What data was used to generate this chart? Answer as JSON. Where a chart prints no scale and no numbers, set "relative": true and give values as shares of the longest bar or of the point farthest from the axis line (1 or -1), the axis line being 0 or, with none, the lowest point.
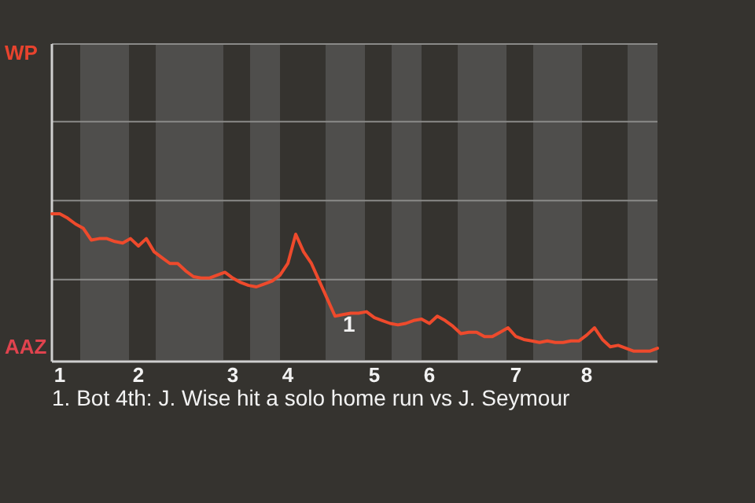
{
  "chart_data": {
    "type": "line",
    "relative": true,
    "ref_lines": [
      {
        "axis": "y",
        "value": 0.55,
        "color": "#8a8a88"
      },
      {
        "axis": "y",
        "value": 1.09,
        "color": "#8a8a88"
      },
      {
        "axis": "y",
        "value": 1.63,
        "color": "#8a8a88"
      }
    ],
    "categories": [
      null,
      "1",
      null,
      null,
      null,
      null,
      null,
      null,
      null,
      null,
      null,
      "2",
      null,
      null,
      null,
      null,
      null,
      null,
      null,
      null,
      null,
      null,
      null,
      "3",
      null,
      null,
      null,
      null,
      null,
      null,
      "4",
      null,
      null,
      null,
      null,
      null,
      null,
      null,
      null,
      null,
      null,
      "5",
      null,
      null,
      null,
      null,
      null,
      null,
      "6",
      null,
      null,
      null,
      null,
      null,
      null,
      null,
      null,
      null,
      null,
      "7",
      null,
      null,
      null,
      null,
      null,
      null,
      null,
      null,
      "8",
      null,
      null,
      null,
      null,
      null,
      null,
      null,
      null,
      null
    ],
    "series": [
      {
        "color": "#ee4a2c",
        "values": [
          1,
          1,
          0.97,
          0.93,
          0.9,
          0.82,
          0.83,
          0.83,
          0.81,
          0.8,
          0.83,
          0.78,
          0.83,
          0.74,
          0.7,
          0.66,
          0.66,
          0.61,
          0.57,
          0.56,
          0.56,
          0.58,
          0.6,
          0.56,
          0.53,
          0.51,
          0.5,
          0.52,
          0.54,
          0.58,
          0.66,
          0.86,
          0.74,
          0.66,
          0.54,
          0.42,
          0.3,
          0.31,
          0.32,
          0.32,
          0.33,
          0.29,
          0.27,
          0.25,
          0.24,
          0.25,
          0.27,
          0.28,
          0.25,
          0.3,
          0.27,
          0.23,
          0.18,
          0.19,
          0.19,
          0.16,
          0.16,
          0.19,
          0.22,
          0.16,
          0.14,
          0.13,
          0.12,
          0.13,
          0.12,
          0.12,
          0.13,
          0.13,
          0.17,
          0.22,
          0.14,
          0.09,
          0.1,
          0.08,
          0.06,
          0.06,
          0.06,
          0.08
        ]
      }
    ],
    "annotations": [
      "WP",
      "AAZ",
      {
        "text": "1",
        "y": 0.3
      },
      "1. Bot 4th: J. Wise hit a solo home run vs J. Seymour"
    ]
  }
}
